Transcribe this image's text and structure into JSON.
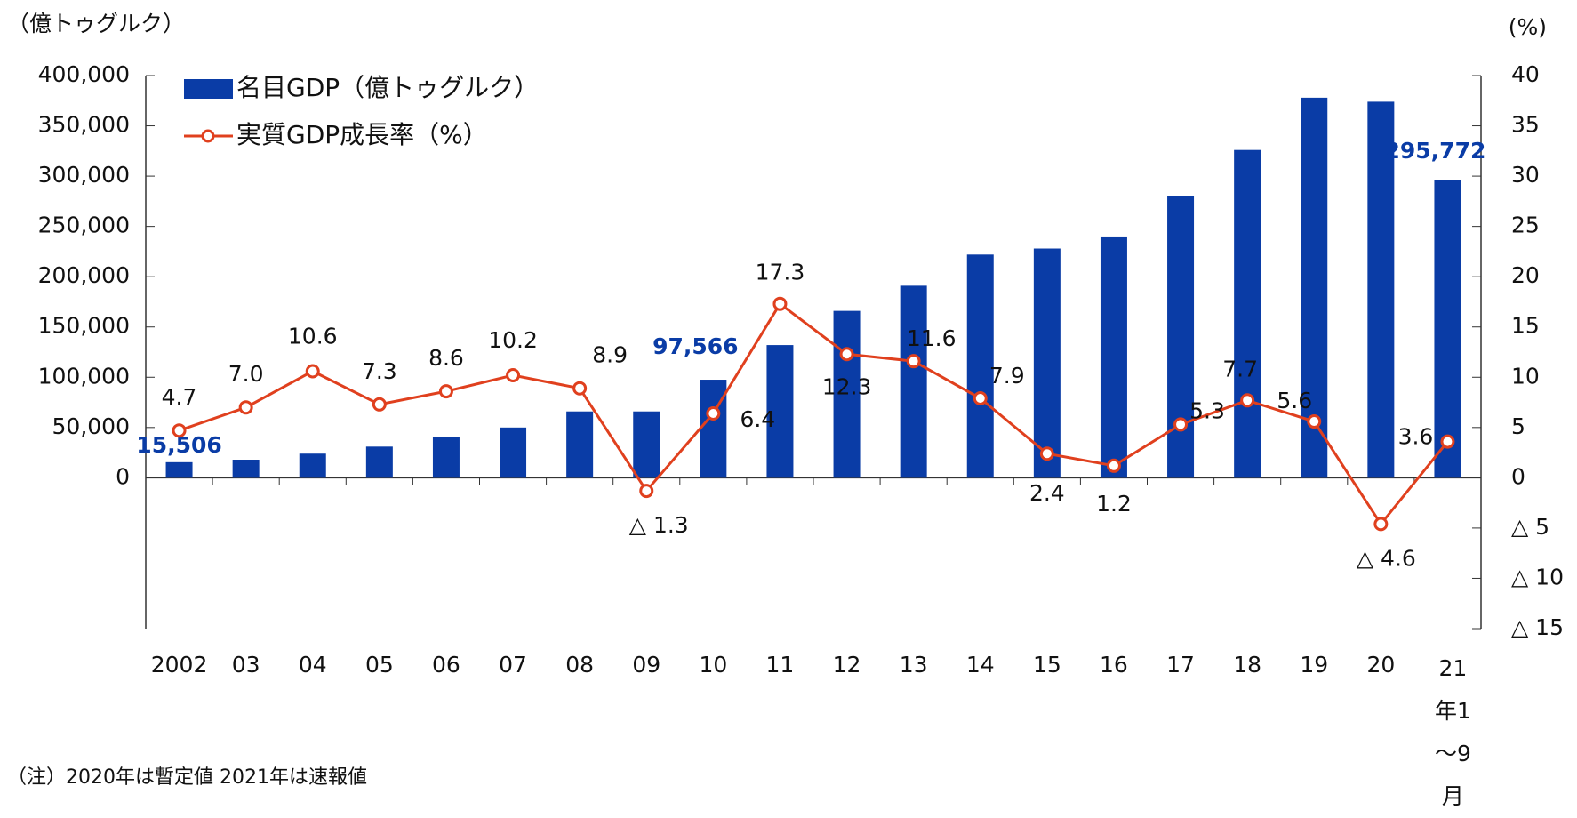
{
  "chart_data": {
    "type": "bar_line",
    "y_label": "（億トゥグルク）",
    "y2_label": "(%)",
    "note": "（注）2020年は暫定値 2021年は速報値",
    "categories": [
      "2002",
      "03",
      "04",
      "05",
      "06",
      "07",
      "08",
      "09",
      "10",
      "11",
      "12",
      "13",
      "14",
      "15",
      "16",
      "17",
      "18",
      "19",
      "20",
      "21年1～9月"
    ],
    "series": [
      {
        "name": "名目GDP（億トゥグルク）",
        "type": "bar",
        "color": "#0a3ca6",
        "values": [
          15506,
          18000,
          24000,
          31000,
          41000,
          50000,
          66000,
          66000,
          97566,
          132000,
          166000,
          191000,
          222000,
          228000,
          240000,
          280000,
          326000,
          378000,
          374000,
          295772
        ],
        "value_labels": [
          "15,506",
          null,
          null,
          null,
          null,
          null,
          null,
          null,
          "97,566",
          null,
          null,
          null,
          null,
          null,
          null,
          null,
          null,
          null,
          null,
          "295,772"
        ]
      },
      {
        "name": "実質GDP成長率（%）",
        "type": "line",
        "axis": "y2",
        "color": "#e0401e",
        "values": [
          4.7,
          7.0,
          10.6,
          7.3,
          8.6,
          10.2,
          8.9,
          -1.3,
          6.4,
          17.3,
          12.3,
          11.6,
          7.9,
          2.4,
          1.2,
          5.3,
          7.7,
          5.6,
          -4.6,
          3.6
        ],
        "value_labels": [
          "4.7",
          "7.0",
          "10.6",
          "7.3",
          "8.6",
          "10.2",
          "8.9",
          "△ 1.3",
          "6.4",
          "17.3",
          "12.3",
          "11.6",
          "7.9",
          "2.4",
          "1.2",
          "5.3",
          "7.7",
          "5.6",
          "△ 4.6",
          "3.6"
        ]
      }
    ],
    "ylim": [
      -150000,
      400000
    ],
    "yticks": [
      0,
      {
        "value": 50000,
        "label": "50,000"
      },
      {
        "value": 100000,
        "label": "100,000"
      },
      {
        "value": 150000,
        "label": "150,000"
      },
      {
        "value": 200000,
        "label": "200,000"
      },
      {
        "value": 250000,
        "label": "250,000"
      },
      {
        "value": 300000,
        "label": "300,000"
      },
      {
        "value": 350000,
        "label": "350,000"
      },
      {
        "value": 400000,
        "label": "400,000"
      }
    ],
    "y2lim": [
      -15,
      40
    ],
    "y2ticks": [
      {
        "value": -15,
        "label": "△ 15"
      },
      {
        "value": -10,
        "label": "△ 10"
      },
      {
        "value": -5,
        "label": "△ 5"
      },
      0,
      5,
      10,
      15,
      20,
      25,
      30,
      35,
      40
    ]
  }
}
